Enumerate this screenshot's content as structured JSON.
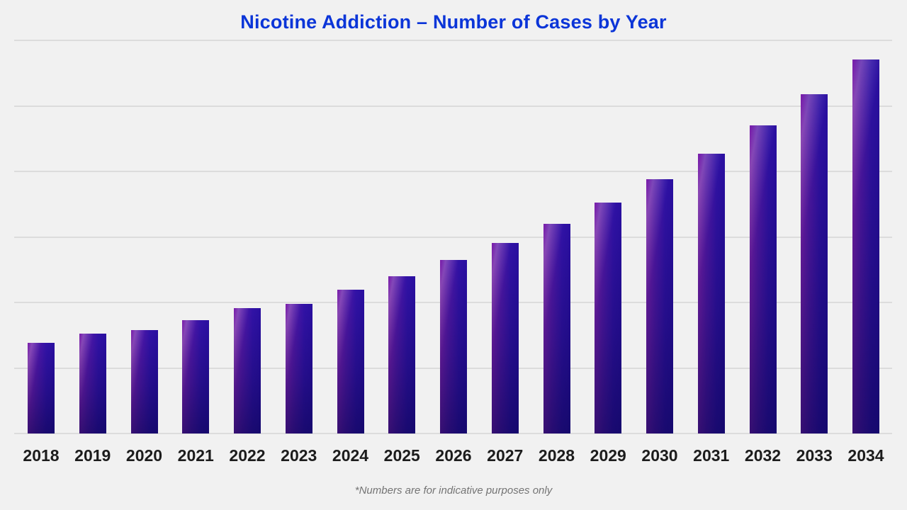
{
  "page": {
    "background_color": "#f1f1f1",
    "gridline_color": "#dcdcdc"
  },
  "title": {
    "text": "Nicotine Addiction – Number of Cases by Year",
    "color": "#0b35d8"
  },
  "footnote": {
    "text": "*Numbers are for indicative purposes only",
    "color": "#747474"
  },
  "chart_data": {
    "type": "bar",
    "title": "Nicotine Addiction – Number of Cases by Year",
    "categories": [
      "2018",
      "2019",
      "2020",
      "2021",
      "2022",
      "2023",
      "2024",
      "2025",
      "2026",
      "2027",
      "2028",
      "2029",
      "2030",
      "2031",
      "2032",
      "2033",
      "2034"
    ],
    "values": [
      138,
      152,
      158,
      173,
      191,
      198,
      219,
      240,
      265,
      291,
      320,
      352,
      388,
      427,
      470,
      518,
      571
    ],
    "value_note": "relative units estimated from gridlines; chart displays no y-axis tick labels",
    "xlabel": "",
    "ylabel": "",
    "ylim": [
      0,
      600
    ],
    "grid": {
      "horizontal": true,
      "interval": 100,
      "lines": 7,
      "labels_shown": false
    },
    "legend": "none",
    "bar_style": {
      "gradient_left": "#7e21ac",
      "gradient_right": "#2a0fa0",
      "gradient_bottom_shade": "#08044b",
      "tick_label_color": "#1c1c1c"
    }
  }
}
